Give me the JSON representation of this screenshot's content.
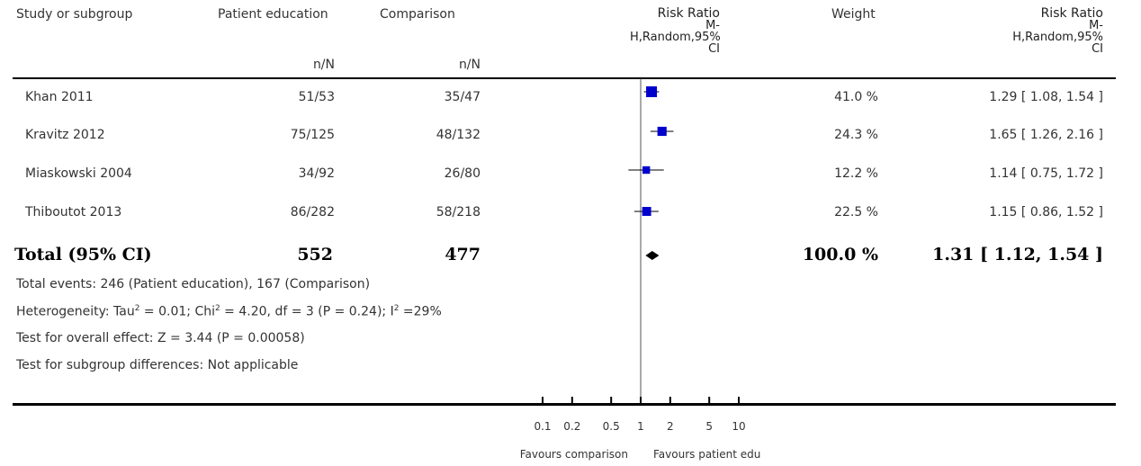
{
  "headers": {
    "study": "Study or subgroup",
    "patient_education": "Patient education",
    "comparison": "Comparison",
    "nN_left": "n/N",
    "nN_right": "n/N",
    "rr_plot": [
      "Risk Ratio",
      "M-",
      "H,Random,95%",
      "CI"
    ],
    "weight": "Weight",
    "rr_text": [
      "Risk Ratio",
      "M-",
      "H,Random,95%",
      "CI"
    ]
  },
  "studies": [
    {
      "name": "Khan 2011",
      "pe": "51/53",
      "comp": "35/47",
      "weight": "41.0 %",
      "ci_text": "1.29 [ 1.08, 1.54 ]"
    },
    {
      "name": "Kravitz 2012",
      "pe": "75/125",
      "comp": "48/132",
      "weight": "24.3 %",
      "ci_text": "1.65 [ 1.26, 2.16 ]"
    },
    {
      "name": "Miaskowski 2004",
      "pe": "34/92",
      "comp": "26/80",
      "weight": "12.2 %",
      "ci_text": "1.14 [ 0.75, 1.72 ]"
    },
    {
      "name": "Thiboutot 2013",
      "pe": "86/282",
      "comp": "58/218",
      "weight": "22.5 %",
      "ci_text": "1.15 [ 0.86, 1.52 ]"
    }
  ],
  "total": {
    "label": "Total (95% CI)",
    "pe": "552",
    "comp": "477",
    "weight": "100.0 %",
    "ci_text": "1.31 [ 1.12, 1.54 ]"
  },
  "footer": {
    "events": "Total events: 246 (Patient education), 167 (Comparison)",
    "het_a": "Heterogeneity: Tau",
    "het_b": " = 0.01; Chi",
    "het_c": " = 4.20, df = 3 (P = 0.24); I",
    "het_d": " =29%",
    "sup2": "2",
    "overall": "Test for overall effect: Z = 3.44 (P = 0.00058)",
    "subgroup": "Test for subgroup differences: Not applicable"
  },
  "chart_data": {
    "type": "scatter",
    "scale": "log",
    "x_ticks": [
      0.1,
      0.2,
      0.5,
      1,
      2,
      5,
      10
    ],
    "x_tick_labels": [
      "0.1",
      "0.2",
      "0.5",
      "1",
      "2",
      "5",
      "10"
    ],
    "favours_left": "Favours comparison",
    "favours_right": "Favours patient edu",
    "studies": [
      {
        "name": "Khan 2011",
        "rr": 1.29,
        "lo": 1.08,
        "hi": 1.54,
        "weight": 41.0
      },
      {
        "name": "Kravitz 2012",
        "rr": 1.65,
        "lo": 1.26,
        "hi": 2.16,
        "weight": 24.3
      },
      {
        "name": "Miaskowski 2004",
        "rr": 1.14,
        "lo": 0.75,
        "hi": 1.72,
        "weight": 12.2
      },
      {
        "name": "Thiboutot 2013",
        "rr": 1.15,
        "lo": 0.86,
        "hi": 1.52,
        "weight": 22.5
      }
    ],
    "total": {
      "rr": 1.31,
      "lo": 1.12,
      "hi": 1.54
    },
    "marker_color": "#0000cc"
  }
}
